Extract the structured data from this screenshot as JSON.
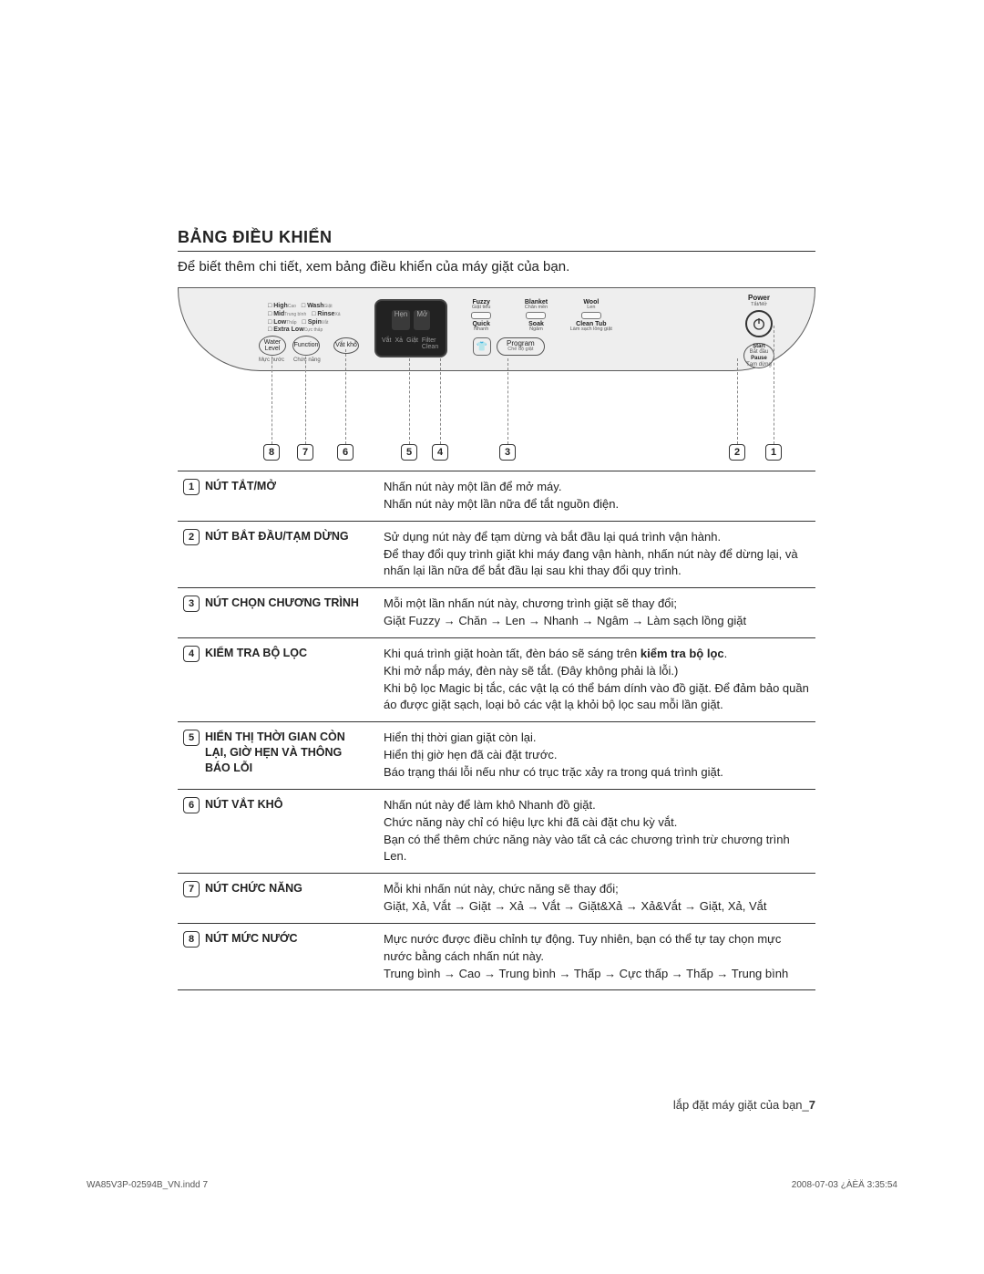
{
  "section_title": "BẢNG ĐIỀU KHIỂN",
  "intro": "Để biết thêm chi tiết, xem bảng điều khiển của máy giặt của bạn.",
  "panel": {
    "level_rows": [
      {
        "a": "High",
        "as": "Cao",
        "b": "Wash",
        "bs": "Giặt"
      },
      {
        "a": "Mid",
        "as": "Trung bình",
        "b": "Rinse",
        "bs": "Xả"
      },
      {
        "a": "Low",
        "as": "Thấp",
        "b": "Spin",
        "bs": "Vắt"
      },
      {
        "a": "Extra Low",
        "as": "Cực thấp",
        "b": "",
        "bs": ""
      }
    ],
    "btn_water_l1": "Water",
    "btn_water_l2": "Level",
    "btn_function": "Function",
    "btn_spin": "Vắt khô",
    "water_sub_a": "Mực nước",
    "water_sub_b": "Chức năng",
    "display_top_a": "Hẹn",
    "display_top_b": "Mở",
    "display_ic1": "Vắt",
    "display_ic2": "Xả",
    "display_ic3": "Giặt",
    "display_ic4": "Filter Clean",
    "programs_row1": [
      {
        "label": "Fuzzy",
        "sub": "Giặt tiêu"
      },
      {
        "label": "Blanket",
        "sub": "Chăn mền"
      },
      {
        "label": "Wool",
        "sub": "Len"
      }
    ],
    "programs_row2": [
      {
        "label": "Quick",
        "sub": "Nhanh"
      },
      {
        "label": "Soak",
        "sub": "Ngâm"
      },
      {
        "label": "Clean Tub",
        "sub": "Làm sạch lồng giặt"
      }
    ],
    "prog_knob_label": "Program",
    "prog_knob_sub": "Chế độ giặt",
    "power_label": "Power",
    "power_sub": "Tắt/Mở",
    "start_l1": "Start",
    "start_s1": "Bắt đầu",
    "start_l2": "Pause",
    "start_s2": "Tạm dừng"
  },
  "callouts": [
    "8",
    "7",
    "6",
    "5",
    "4",
    "3",
    "2",
    "1"
  ],
  "rows": [
    {
      "n": "1",
      "label": "NÚT TẮT/MỞ",
      "desc": "Nhấn nút này một lần để mở máy.\nNhấn nút này một lần nữa để tắt nguồn điện."
    },
    {
      "n": "2",
      "label": "NÚT BẮT ĐẦU/TẠM DỪNG",
      "desc": "Sử dụng nút này để tạm dừng và bắt đầu lại quá trình vận hành.\nĐể thay đổi quy trình giặt khi máy đang vận hành, nhấn nút này để dừng lại, và nhấn lại lần nữa để bắt đầu lại sau khi thay đổi quy trình."
    },
    {
      "n": "3",
      "label": "NÚT CHỌN CHƯƠNG TRÌNH",
      "desc": "Mỗi một lần nhấn nút này, chương trình giặt sẽ thay đổi;\nGiặt Fuzzy → Chăn → Len → Nhanh → Ngâm → Làm sạch lồng giặt"
    },
    {
      "n": "4",
      "label": "KIỂM TRA BỘ LỌC",
      "desc": "Khi quá trình giặt hoàn tất, đèn báo sẽ sáng trên <b>kiểm tra bộ lọc</b>.\nKhi mở nắp máy, đèn này sẽ tắt. (Đây không phải là lỗi.)\nKhi bộ lọc Magic bị tắc, các vật lạ có thể bám dính vào đồ giặt. Để đảm bảo quần áo được giặt sạch, loại bỏ các vật lạ khỏi bộ lọc sau mỗi lần giặt."
    },
    {
      "n": "5",
      "label": "HIỂN THỊ THỜI GIAN CÒN LẠI, GIỜ HẸN VÀ THÔNG BÁO LỖI",
      "desc": "Hiển thị thời gian giặt còn lại.\nHiển thị giờ hẹn đã cài đặt trước.\nBáo trạng thái lỗi nếu như có trục trặc xảy ra trong quá trình giặt."
    },
    {
      "n": "6",
      "label": "NÚT VẮT KHÔ",
      "desc": "Nhấn nút này để làm khô Nhanh đồ giặt.\nChức năng này chỉ có hiệu lực khi đã cài đặt chu kỳ vắt.\nBạn có thể thêm chức năng này vào tất cả các chương trình trừ chương trình Len."
    },
    {
      "n": "7",
      "label": "NÚT CHỨC NĂNG",
      "desc": "Mỗi khi nhấn nút này, chức năng sẽ thay đổi;\nGiặt, Xả, Vắt → Giặt → Xả → Vắt → Giặt&Xả → Xả&Vắt → Giặt, Xả, Vắt"
    },
    {
      "n": "8",
      "label": "NÚT MỨC NƯỚC",
      "desc": "Mực nước được điều chỉnh tự động. Tuy nhiên, bạn có thể tự tay chọn mực nước bằng cách nhấn nút này.\nTrung bình → Cao → Trung bình → Thấp → Cực thấp → Thấp → Trung bình"
    }
  ],
  "footer_right_a": "lắp đặt máy giặt của bạn_",
  "footer_right_b": "7",
  "print_left": "WA85V3P-02594B_VN.indd   7",
  "print_right": "2008-07-03   ¿ÀÈÄ 3:35:54"
}
